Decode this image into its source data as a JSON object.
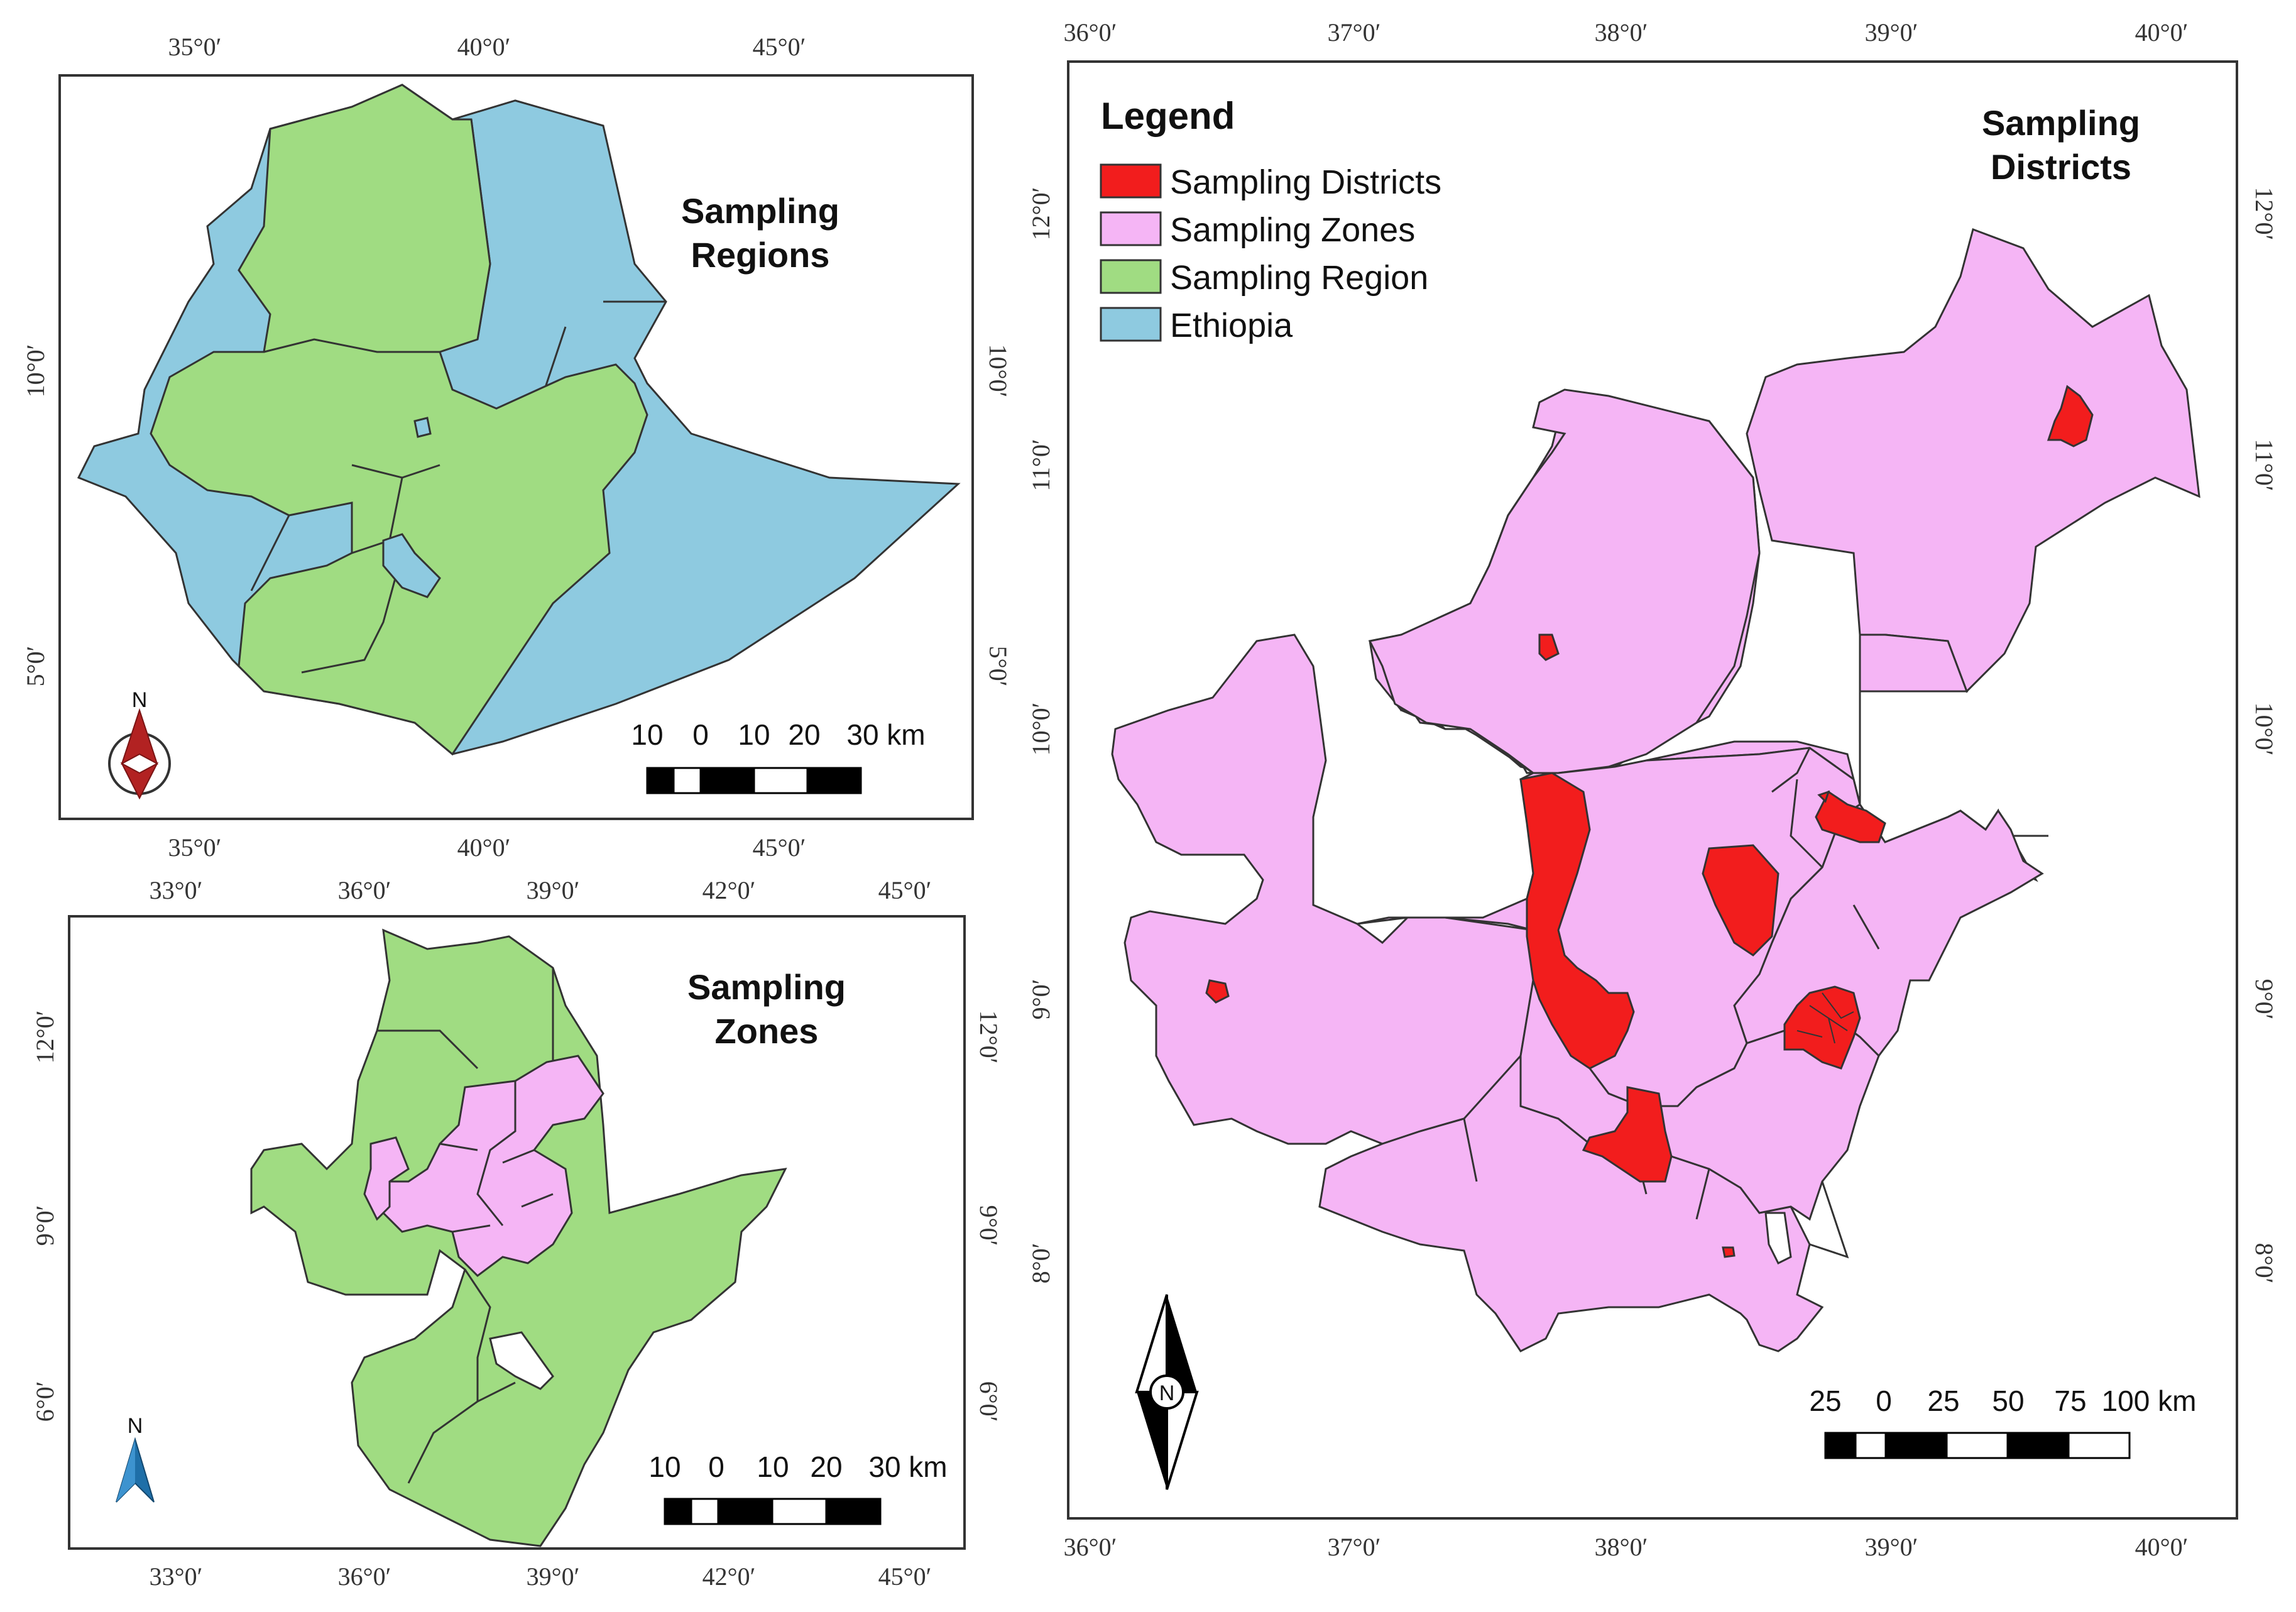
{
  "colors": {
    "districts": "#f21d1d",
    "zones": "#f5b5f5",
    "region": "#a0dc82",
    "ethiopia": "#8ecae0",
    "border": "#333333",
    "frame": "#333333"
  },
  "legend": {
    "title": "Legend",
    "items": [
      {
        "label": "Sampling Districts",
        "color": "#f21d1d"
      },
      {
        "label": "Sampling Zones",
        "color": "#f5b5f5"
      },
      {
        "label": "Sampling Region",
        "color": "#a0dc82"
      },
      {
        "label": "Ethiopia",
        "color": "#8ecae0"
      }
    ]
  },
  "panels": {
    "regions": {
      "title_line1": "Sampling",
      "title_line2": "Regions",
      "ticks_top": [
        "35°0′",
        "40°0′",
        "45°0′"
      ],
      "ticks_bottom": [
        "35°0′",
        "40°0′",
        "45°0′"
      ],
      "ticks_left": [
        "10°0′",
        "5°0′"
      ],
      "ticks_right": [
        "10°0′",
        "5°0′"
      ],
      "north_label": "N",
      "scale_labels": [
        "10",
        "0",
        "10",
        "20",
        "30 km"
      ]
    },
    "zones": {
      "title_line1": "Sampling",
      "title_line2": "Zones",
      "ticks_top": [
        "33°0′",
        "36°0′",
        "39°0′",
        "42°0′",
        "45°0′"
      ],
      "ticks_bottom": [
        "33°0′",
        "36°0′",
        "39°0′",
        "42°0′",
        "45°0′"
      ],
      "ticks_left": [
        "12°0′",
        "9°0′",
        "6°0′"
      ],
      "ticks_right": [
        "12°0′",
        "9°0′",
        "6°0′"
      ],
      "north_label": "N",
      "scale_labels": [
        "10",
        "0",
        "10",
        "20",
        "30 km"
      ]
    },
    "districts": {
      "title_line1": "Sampling",
      "title_line2": "Districts",
      "ticks_top": [
        "36°0′",
        "37°0′",
        "38°0′",
        "39°0′",
        "40°0′"
      ],
      "ticks_bottom": [
        "36°0′",
        "37°0′",
        "38°0′",
        "39°0′",
        "40°0′"
      ],
      "ticks_left": [
        "12°0′",
        "11°0′",
        "10°0′",
        "9°0′",
        "8°0′"
      ],
      "ticks_right": [
        "12°0′",
        "11°0′",
        "10°0′",
        "9°0′",
        "8°0′"
      ],
      "north_label": "N",
      "scale_labels": [
        "25",
        "0",
        "25",
        "50",
        "75",
        "100 km"
      ]
    }
  }
}
